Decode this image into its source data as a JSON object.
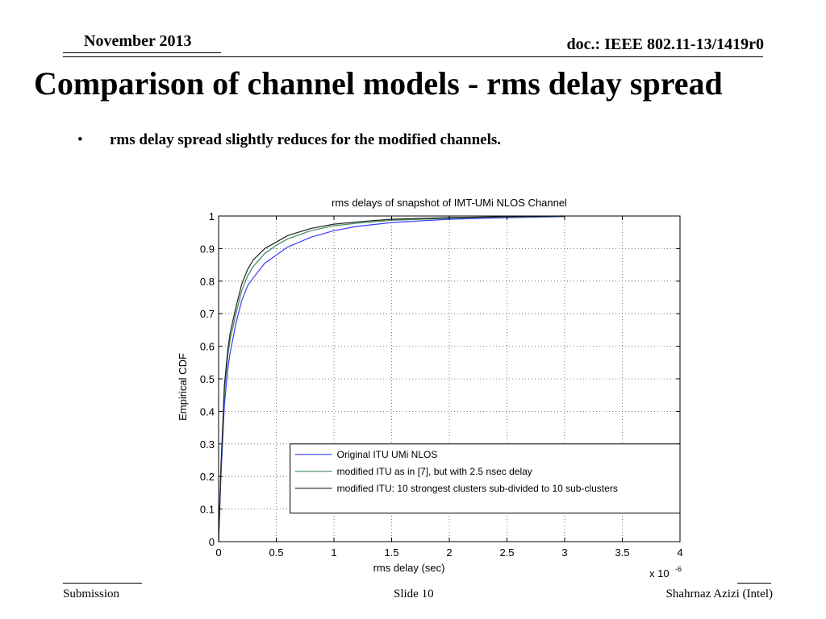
{
  "header": {
    "date": "November 2013",
    "doc_id": "doc.: IEEE 802.11-13/1419r0"
  },
  "slide": {
    "title": "Comparison of channel models  - rms delay spread",
    "bullets": [
      "rms delay spread slightly reduces for the modified channels."
    ]
  },
  "footer": {
    "left": "Submission",
    "center": "Slide 10",
    "right": "Shahrnaz Azizi (Intel)"
  },
  "chart_data": {
    "type": "line",
    "title": "rms delays of snapshot of IMT-UMi NLOS Channel",
    "xlabel": "rms delay (sec)",
    "ylabel": "Empirical CDF",
    "x_multiplier_label": "x 10",
    "x_multiplier_exp": "-6",
    "xlim": [
      0,
      4
    ],
    "ylim": [
      0,
      1
    ],
    "xticks": [
      "0",
      "0.5",
      "1",
      "1.5",
      "2",
      "2.5",
      "3",
      "3.5",
      "4"
    ],
    "yticks": [
      "0",
      "0.1",
      "0.2",
      "0.3",
      "0.4",
      "0.5",
      "0.6",
      "0.7",
      "0.8",
      "0.9",
      "1"
    ],
    "grid": true,
    "legend_position": "lower-right",
    "series": [
      {
        "name": "Original ITU UMi NLOS",
        "color": "#3a3aff",
        "x": [
          0,
          0.02,
          0.05,
          0.08,
          0.1,
          0.15,
          0.2,
          0.25,
          0.3,
          0.4,
          0.5,
          0.6,
          0.8,
          1.0,
          1.2,
          1.5,
          2.0,
          2.5,
          3.0
        ],
        "y": [
          0,
          0.2,
          0.42,
          0.53,
          0.58,
          0.67,
          0.74,
          0.785,
          0.81,
          0.855,
          0.88,
          0.905,
          0.935,
          0.955,
          0.968,
          0.98,
          0.99,
          0.995,
          0.998
        ]
      },
      {
        "name": "modified ITU as in [7], but with 2.5 nsec delay",
        "color": "#3a8a5a",
        "x": [
          0,
          0.02,
          0.05,
          0.08,
          0.1,
          0.15,
          0.2,
          0.25,
          0.3,
          0.4,
          0.5,
          0.6,
          0.8,
          1.0,
          1.2,
          1.5,
          2.0,
          2.5,
          3.0
        ],
        "y": [
          0,
          0.22,
          0.46,
          0.57,
          0.62,
          0.7,
          0.77,
          0.815,
          0.845,
          0.885,
          0.91,
          0.93,
          0.955,
          0.97,
          0.978,
          0.987,
          0.993,
          0.997,
          0.999
        ]
      },
      {
        "name": "modified ITU: 10 strongest clusters sub-divided to 10 sub-clusters",
        "color": "#222222",
        "x": [
          0,
          0.02,
          0.05,
          0.08,
          0.1,
          0.15,
          0.2,
          0.25,
          0.3,
          0.4,
          0.5,
          0.6,
          0.8,
          1.0,
          1.2,
          1.5,
          2.0,
          2.5,
          3.0
        ],
        "y": [
          0,
          0.23,
          0.48,
          0.59,
          0.64,
          0.72,
          0.79,
          0.835,
          0.865,
          0.9,
          0.92,
          0.94,
          0.962,
          0.975,
          0.982,
          0.99,
          0.995,
          0.998,
          1.0
        ]
      }
    ]
  }
}
